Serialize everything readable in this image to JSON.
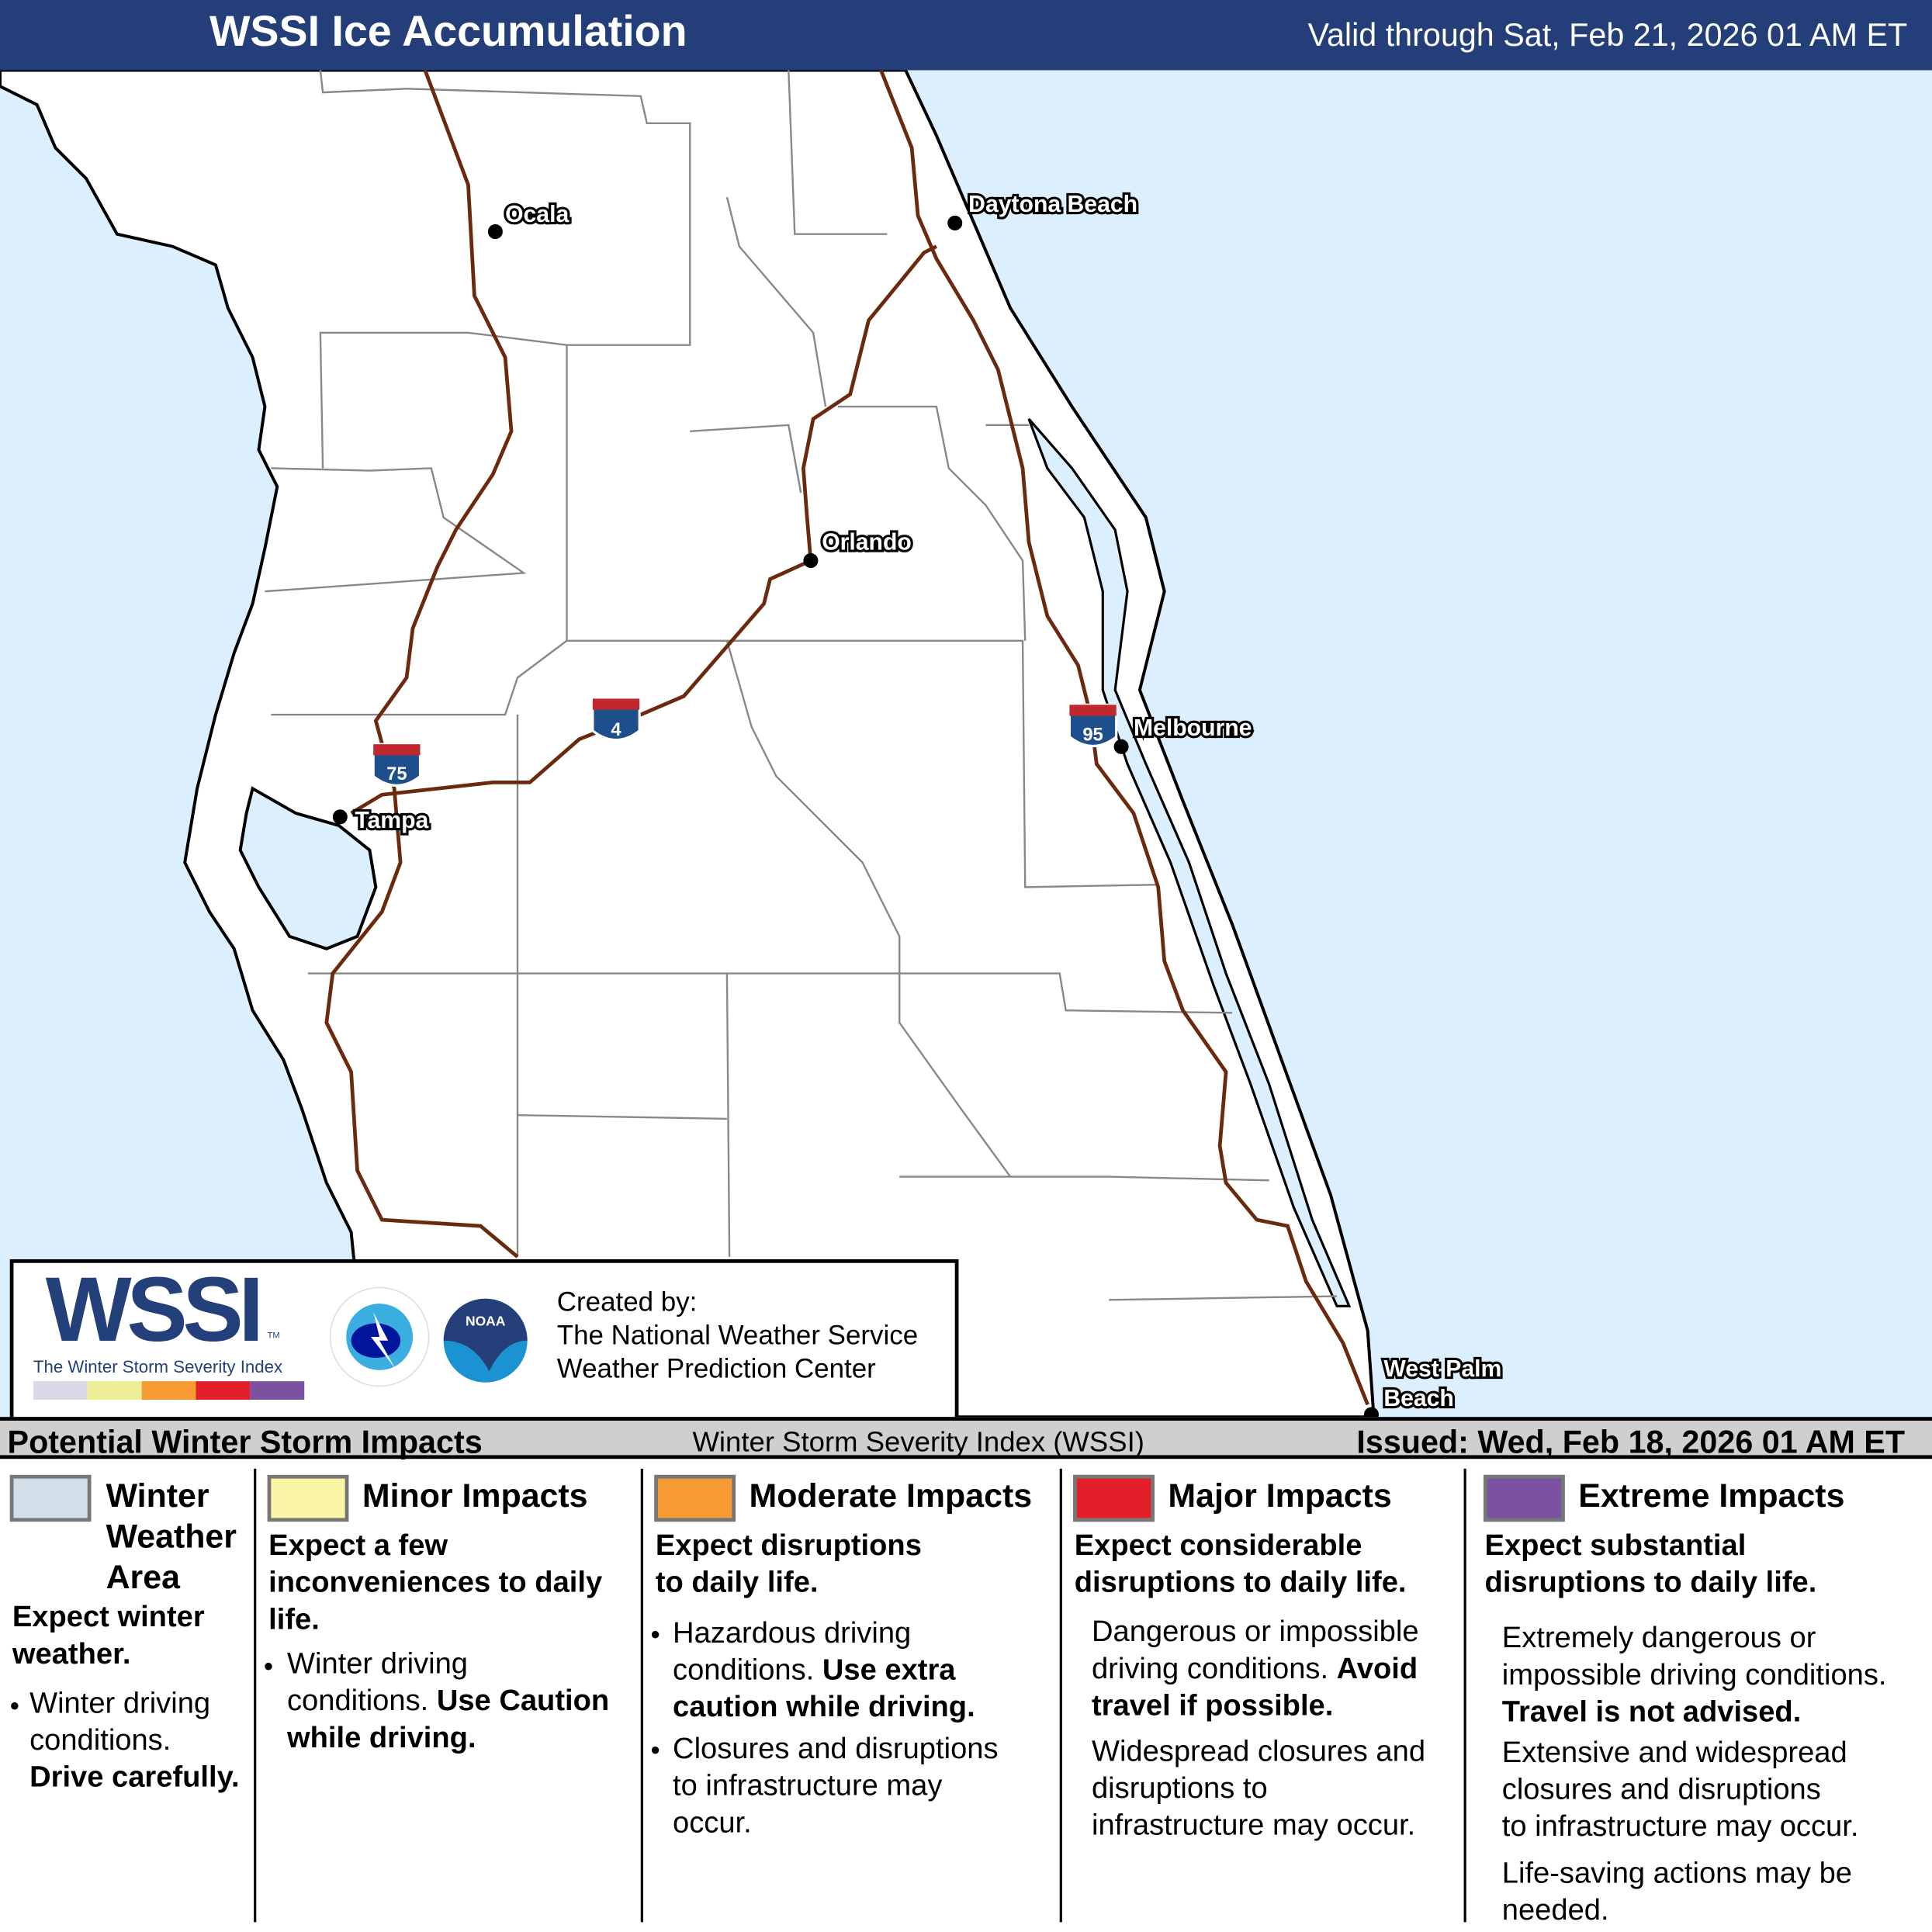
{
  "header": {
    "title": "WSSI Ice Accumulation",
    "valid": "Valid through Sat, Feb 21, 2026 01 AM ET"
  },
  "map": {
    "colors": {
      "ocean": "#dcefff",
      "land": "#ffffff",
      "interstate": "#6b2a0e",
      "county": "#888888",
      "coast": "#000000"
    },
    "cities": [
      "Ocala",
      "Daytona Beach",
      "Orlando",
      "Tampa",
      "Melbourne",
      "West Palm",
      "Beach"
    ],
    "interstates": [
      "75",
      "4",
      "95"
    ]
  },
  "logo": {
    "wssi": "WSSI",
    "tm": "TM",
    "subtitle": "The Winter Storm Severity Index",
    "nws_icon": "nws-logo-icon",
    "noaa_text": "NOAA",
    "created_by": "Created by:",
    "org1": "The National Weather Service",
    "org2": "Weather Prediction Center",
    "bar_colors": [
      "#d9d9e6",
      "#eded96",
      "#f69a32",
      "#e3202a",
      "#7a52a0"
    ]
  },
  "legend_header": {
    "left": "Potential Winter Storm Impacts",
    "center": "Winter Storm Severity Index (WSSI)",
    "right": "Issued: Wed, Feb 18, 2026 01 AM ET"
  },
  "legend": [
    {
      "color": "#d3dfe8",
      "name_l1": "Winter",
      "name_l2": "Weather",
      "name_l3": "Area",
      "lead": "Expect winter",
      "lead2": "weather.",
      "b1": "Winter driving",
      "b2": "conditions.",
      "b3": "Drive carefully."
    },
    {
      "color": "#fbf6a6",
      "name": "Minor Impacts",
      "lead": "Expect a few",
      "lead2": "inconveniences to daily",
      "lead3": "life.",
      "b1": "Winter driving",
      "b2": "conditions.",
      "b2b": "Use Caution",
      "b3": "while driving."
    },
    {
      "color": "#f69a32",
      "name": "Moderate Impacts",
      "lead": "Expect disruptions",
      "lead2": "to daily life.",
      "b1": "Hazardous driving",
      "b2": "conditions.",
      "b2b": "Use extra",
      "b3": "caution while driving.",
      "c1": "Closures and disruptions",
      "c2": "to infrastructure may",
      "c3": "occur."
    },
    {
      "color": "#e3202a",
      "name": "Major Impacts",
      "lead": "Expect considerable",
      "lead2": "disruptions to daily life.",
      "b1": "Dangerous or impossible",
      "b2": "driving conditions.",
      "b2b": "Avoid",
      "b3": "travel if possible.",
      "c1": "Widespread closures and",
      "c2": "disruptions to",
      "c3": "infrastructure may occur."
    },
    {
      "color": "#7a52a0",
      "name": "Extreme Impacts",
      "lead": "Expect substantial",
      "lead2": "disruptions to daily life.",
      "b1": "Extremely dangerous or",
      "b2": "impossible driving conditions.",
      "b3": "Travel is not advised.",
      "c1": "Extensive and widespread",
      "c2": "closures and disruptions",
      "c3": "to infrastructure may occur.",
      "d1": "Life-saving actions may be",
      "d2": "needed."
    }
  ]
}
